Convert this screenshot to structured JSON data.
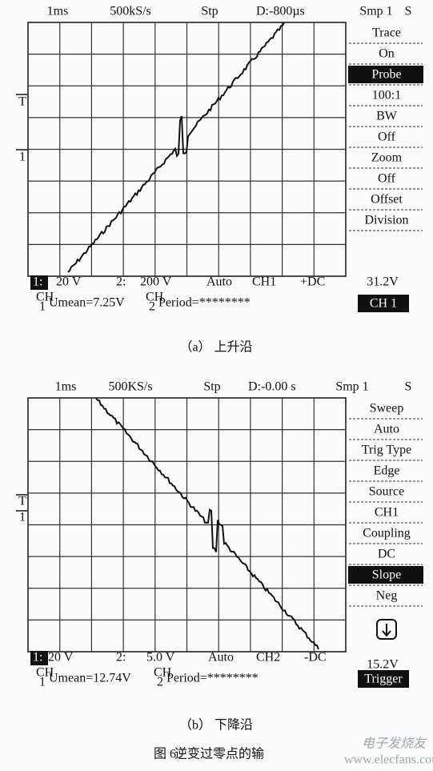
{
  "panels": [
    {
      "header": [
        "1ms",
        "500kS/s",
        "Stp",
        "D:-800µs",
        "Smp 1",
        "S"
      ],
      "menu": [
        "Trace",
        "On",
        "Probe",
        "100:1",
        "BW",
        "Off",
        "Zoom",
        "Off",
        "Offset",
        "Division"
      ],
      "selected": 2,
      "markers": [
        "T",
        "1"
      ],
      "bottom": [
        "1:",
        "20  V",
        "2:",
        "200 V",
        "Auto",
        "CH1",
        "+DC"
      ],
      "level": "31.2V",
      "stats": [
        {
          "ch": "CH",
          "n": "1",
          "text": "Umean=7.25V"
        },
        {
          "ch": "CH",
          "n": "2",
          "text": "Period=********"
        }
      ],
      "button": "CH 1",
      "caption": "（a）  上升沿"
    },
    {
      "header": [
        "1ms",
        "500KS/s",
        "Stp",
        "D:-0.00 s",
        "Smp 1",
        "S"
      ],
      "menu": [
        "Sweep",
        "Auto",
        "Trig Type",
        "Edge",
        "Source",
        "CH1",
        "Coupling",
        "DC",
        "Slope",
        "Neg"
      ],
      "selected": 8,
      "markers": [
        "T",
        "1"
      ],
      "bottom": [
        "1:",
        "20  V",
        "2:",
        "5.0 V",
        "Auto",
        "CH2",
        "-DC"
      ],
      "level": "15.2V",
      "stats": [
        {
          "ch": "CH",
          "n": "1",
          "text": "Umean=12.74V"
        },
        {
          "ch": "CH",
          "n": "2",
          "text": "Period=********"
        }
      ],
      "button": "Trigger",
      "caption": "（b）  下降沿"
    }
  ],
  "figure_caption": {
    "number": "图 6",
    "text": "逆变过零点的输"
  },
  "watermark": {
    "name": "电子发烧友",
    "url": "www.elecfans.com"
  }
}
